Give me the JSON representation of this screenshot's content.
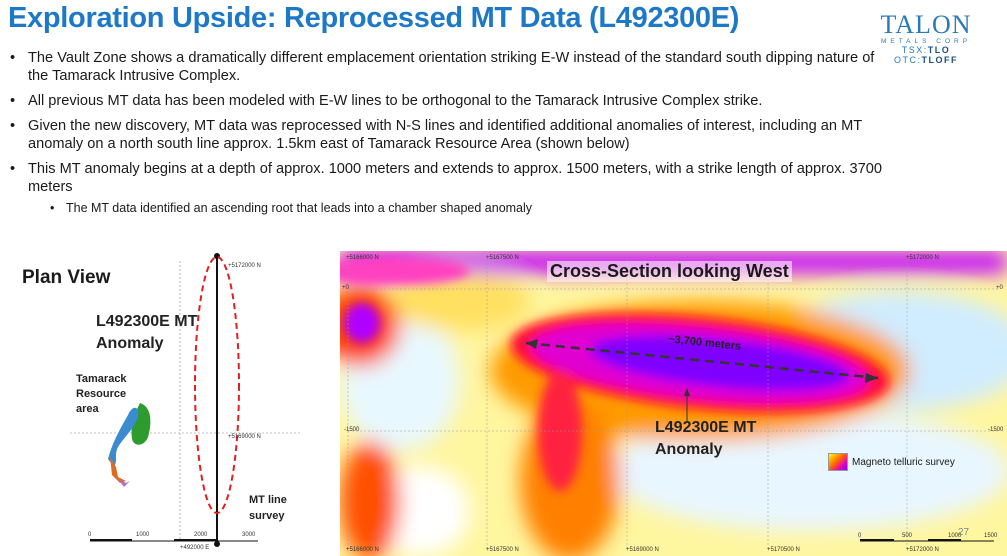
{
  "header": {
    "title": "Exploration Upside:  Reprocessed MT Data (L492300E)"
  },
  "logo": {
    "name": "TALON",
    "sub": "METALS CORP",
    "ticker_tsx": "TSX:",
    "ticker_tsx_val": "TLO",
    "ticker_otc": "OTC:",
    "ticker_otc_val": "TLOFF"
  },
  "bullets": [
    "The Vault Zone shows a dramatically different emplacement orientation striking E-W instead of the standard south dipping nature of the Tamarack Intrusive Complex.",
    "All previous MT data has been modeled with E-W lines to be orthogonal to the Tamarack Intrusive Complex strike.",
    "Given the new discovery, MT data was reprocessed with N-S lines and identified additional anomalies of interest, including an MT anomaly on a north south line approx. 1.5km east of Tamarack Resource Area (shown below)",
    "This MT anomaly begins at a depth of approx. 1000 meters and extends to approx. 1500 meters, with a strike length of approx. 3700 meters"
  ],
  "sub_bullet": "The MT data identified an ascending root that leads into a chamber shaped anomaly",
  "plan": {
    "title": "Plan View",
    "anomaly_label_1": "L492300E MT",
    "anomaly_label_2": "Anomaly",
    "tamarack_1": "Tamarack",
    "tamarack_2": "Resource",
    "tamarack_3": "area",
    "mt_line_1": "MT line",
    "mt_line_2": "survey",
    "coord_top": "+5172000 N",
    "coord_mid": "+5169000 N",
    "coord_bottom": "+492000 E",
    "scale": [
      "0",
      "1000",
      "2000",
      "3000"
    ]
  },
  "xsection": {
    "title": "Cross-Section looking West",
    "strike_label": "~3,700 meters",
    "anomaly_1": "L492300E MT",
    "anomaly_2": "Anomaly",
    "legend": "Magneto telluric survey",
    "depth_left": "-1500",
    "depth_right": "-1500",
    "zero_left": "+0",
    "zero_right": "+0",
    "bottom_ticks": [
      "+5166000 N",
      "+5167500 N",
      "+5169000 N",
      "+5170500 N",
      "+5172000 N"
    ],
    "top_ticks": [
      "+5166000 N",
      "+5167500 N",
      "+5172000 N"
    ],
    "scale": [
      "0",
      "500",
      "1000",
      "1500"
    ]
  },
  "page_number": "27",
  "colors": {
    "title": "#1d78c8",
    "logo": "#2a7ab8",
    "dashed_ellipse": "#e02020"
  }
}
